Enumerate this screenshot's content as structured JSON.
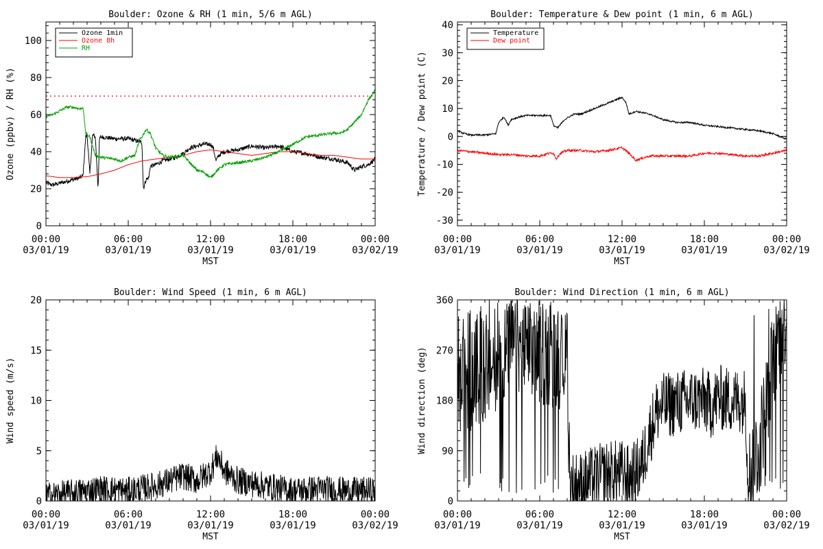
{
  "chart_data": [
    {
      "id": "ozone",
      "type": "line",
      "title": "Boulder: Ozone & RH (1 min, 5/6 m AGL)",
      "xlabel": "MST",
      "ylabel": "Ozone (ppbv) / RH (%)",
      "ylim": [
        0,
        110
      ],
      "yticks": [
        0,
        20,
        40,
        60,
        80,
        100
      ],
      "xticks": [
        {
          "line1": "00:00",
          "line2": "03/01/19"
        },
        {
          "line1": "06:00",
          "line2": "03/01/19"
        },
        {
          "line1": "12:00",
          "line2": "03/01/19"
        },
        {
          "line1": "18:00",
          "line2": "03/01/19"
        },
        {
          "line1": "00:00",
          "line2": "03/02/19"
        }
      ],
      "reference_line": {
        "y": 70,
        "color": "#ff0000",
        "style": "dotted"
      },
      "legend_position": "top-left",
      "series": [
        {
          "name": "Ozone 1min",
          "color": "#000000",
          "noise": 1.2,
          "points": [
            [
              0,
              23
            ],
            [
              0.5,
              22
            ],
            [
              1,
              23
            ],
            [
              1.5,
              24
            ],
            [
              2,
              25
            ],
            [
              2.5,
              26
            ],
            [
              2.7,
              27
            ],
            [
              2.9,
              48
            ],
            [
              3.0,
              49
            ],
            [
              3.2,
              28
            ],
            [
              3.4,
              49
            ],
            [
              3.6,
              48
            ],
            [
              3.8,
              20
            ],
            [
              3.9,
              47
            ],
            [
              4,
              48
            ],
            [
              5,
              47
            ],
            [
              6,
              47
            ],
            [
              6.5,
              46
            ],
            [
              7.0,
              45
            ],
            [
              7.1,
              20
            ],
            [
              7.3,
              25
            ],
            [
              7.5,
              26
            ],
            [
              7.6,
              32
            ],
            [
              8,
              33
            ],
            [
              8.5,
              35
            ],
            [
              9,
              36
            ],
            [
              9.5,
              37
            ],
            [
              10,
              39
            ],
            [
              10.5,
              42
            ],
            [
              11,
              43
            ],
            [
              11.5,
              44
            ],
            [
              12,
              44
            ],
            [
              12.2,
              42
            ],
            [
              12.4,
              35
            ],
            [
              12.6,
              38
            ],
            [
              13,
              40
            ],
            [
              14,
              41
            ],
            [
              15,
              43
            ],
            [
              16,
              42
            ],
            [
              17,
              43
            ],
            [
              18,
              40
            ],
            [
              19,
              39
            ],
            [
              20,
              37
            ],
            [
              21,
              36
            ],
            [
              22,
              34
            ],
            [
              22.5,
              30
            ],
            [
              23,
              32
            ],
            [
              23.5,
              33
            ],
            [
              24,
              36
            ]
          ]
        },
        {
          "name": "Ozone 8h",
          "color": "#ff0000",
          "noise": 0,
          "points": [
            [
              0,
              27
            ],
            [
              1,
              26
            ],
            [
              2,
              26
            ],
            [
              3,
              26.5
            ],
            [
              4,
              28
            ],
            [
              5,
              30
            ],
            [
              6,
              33
            ],
            [
              7,
              35
            ],
            [
              8,
              36
            ],
            [
              9,
              37
            ],
            [
              10,
              38
            ],
            [
              11,
              40
            ],
            [
              12,
              41
            ],
            [
              13,
              40
            ],
            [
              14,
              39
            ],
            [
              15,
              38
            ],
            [
              16,
              39
            ],
            [
              17,
              40
            ],
            [
              18,
              40
            ],
            [
              19,
              39
            ],
            [
              20,
              38
            ],
            [
              21,
              38
            ],
            [
              22,
              37
            ],
            [
              23,
              36
            ],
            [
              24,
              36
            ]
          ]
        },
        {
          "name": "RH",
          "color": "#00a000",
          "noise": 0.8,
          "points": [
            [
              0,
              59
            ],
            [
              0.5,
              60
            ],
            [
              1,
              62
            ],
            [
              1.5,
              64
            ],
            [
              2,
              64
            ],
            [
              2.5,
              63
            ],
            [
              2.7,
              64
            ],
            [
              2.9,
              50
            ],
            [
              3.2,
              48
            ],
            [
              3.4,
              43
            ],
            [
              3.6,
              38
            ],
            [
              4,
              37
            ],
            [
              5,
              36
            ],
            [
              5.5,
              35
            ],
            [
              6,
              37
            ],
            [
              6.5,
              38
            ],
            [
              6.8,
              46
            ],
            [
              7,
              48
            ],
            [
              7.3,
              52
            ],
            [
              7.6,
              50
            ],
            [
              8,
              42
            ],
            [
              8.5,
              38
            ],
            [
              9,
              37
            ],
            [
              10,
              38
            ],
            [
              10.5,
              34
            ],
            [
              11,
              30
            ],
            [
              11.5,
              29
            ],
            [
              12,
              26
            ],
            [
              12.5,
              30
            ],
            [
              13,
              33
            ],
            [
              14,
              34
            ],
            [
              15,
              35
            ],
            [
              16,
              37
            ],
            [
              17,
              40
            ],
            [
              18,
              44
            ],
            [
              19,
              48
            ],
            [
              20,
              49
            ],
            [
              21,
              50
            ],
            [
              21.5,
              50
            ],
            [
              22,
              52
            ],
            [
              22.5,
              56
            ],
            [
              23,
              60
            ],
            [
              23.5,
              68
            ],
            [
              24,
              73
            ]
          ]
        }
      ]
    },
    {
      "id": "temp",
      "type": "line",
      "title": "Boulder: Temperature & Dew point (1 min, 6 m AGL)",
      "xlabel": "MST",
      "ylabel": "Temperature / Dew point (C)",
      "ylim": [
        -32,
        41
      ],
      "yticks": [
        -30,
        -20,
        -10,
        0,
        10,
        20,
        30,
        40
      ],
      "xticks": [
        {
          "line1": "00:00",
          "line2": "03/01/19"
        },
        {
          "line1": "06:00",
          "line2": "03/01/19"
        },
        {
          "line1": "12:00",
          "line2": "03/01/19"
        },
        {
          "line1": "18:00",
          "line2": "03/01/19"
        },
        {
          "line1": "00:00",
          "line2": "03/02/19"
        }
      ],
      "legend_position": "top-left",
      "series": [
        {
          "name": "Temperature",
          "color": "#000000",
          "noise": 0.3,
          "points": [
            [
              0,
              2
            ],
            [
              0.5,
              1
            ],
            [
              1,
              0.5
            ],
            [
              2,
              0.5
            ],
            [
              2.8,
              1
            ],
            [
              3,
              5
            ],
            [
              3.4,
              7
            ],
            [
              3.7,
              4
            ],
            [
              3.9,
              6
            ],
            [
              4.5,
              7
            ],
            [
              5,
              7.5
            ],
            [
              6,
              7.5
            ],
            [
              6.8,
              7.5
            ],
            [
              7,
              4
            ],
            [
              7.3,
              3
            ],
            [
              7.8,
              6
            ],
            [
              8.5,
              8
            ],
            [
              9,
              8
            ],
            [
              10,
              10
            ],
            [
              11,
              12
            ],
            [
              12,
              14
            ],
            [
              12.3,
              12
            ],
            [
              12.5,
              8
            ],
            [
              13,
              9
            ],
            [
              14,
              8
            ],
            [
              15,
              6
            ],
            [
              16,
              5
            ],
            [
              17,
              5
            ],
            [
              18,
              4
            ],
            [
              19,
              3.5
            ],
            [
              20,
              3
            ],
            [
              21,
              2.5
            ],
            [
              22,
              2
            ],
            [
              23,
              1
            ],
            [
              24,
              -1
            ]
          ]
        },
        {
          "name": "Dew point",
          "color": "#ff0000",
          "noise": 0.4,
          "points": [
            [
              0,
              -5
            ],
            [
              1,
              -5.5
            ],
            [
              2,
              -6
            ],
            [
              3,
              -6.5
            ],
            [
              4,
              -6.5
            ],
            [
              5,
              -7
            ],
            [
              6,
              -7
            ],
            [
              6.7,
              -6
            ],
            [
              7,
              -6
            ],
            [
              7.2,
              -8
            ],
            [
              7.5,
              -6
            ],
            [
              8,
              -5
            ],
            [
              9,
              -5
            ],
            [
              10,
              -5.5
            ],
            [
              11,
              -5
            ],
            [
              12,
              -4
            ],
            [
              12.5,
              -6
            ],
            [
              13,
              -8.5
            ],
            [
              14,
              -7
            ],
            [
              15,
              -7
            ],
            [
              16,
              -7
            ],
            [
              17,
              -7
            ],
            [
              18,
              -6
            ],
            [
              19,
              -6
            ],
            [
              20,
              -6.5
            ],
            [
              21,
              -7
            ],
            [
              22,
              -7
            ],
            [
              23,
              -6
            ],
            [
              24,
              -5
            ]
          ]
        }
      ]
    },
    {
      "id": "wspd",
      "type": "line",
      "title": "Boulder: Wind Speed (1 min, 6 m AGL)",
      "xlabel": "MST",
      "ylabel": "Wind speed (m/s)",
      "ylim": [
        0,
        20
      ],
      "yticks": [
        0,
        5,
        10,
        15,
        20
      ],
      "xticks": [
        {
          "line1": "00:00",
          "line2": "03/01/19"
        },
        {
          "line1": "06:00",
          "line2": "03/01/19"
        },
        {
          "line1": "12:00",
          "line2": "03/01/19"
        },
        {
          "line1": "18:00",
          "line2": "03/01/19"
        },
        {
          "line1": "00:00",
          "line2": "03/02/19"
        }
      ],
      "series": [
        {
          "name": "",
          "color": "#000000",
          "noise": 1.4,
          "clipMin": 0,
          "points": [
            [
              0,
              0.5
            ],
            [
              2,
              0.8
            ],
            [
              4,
              1.2
            ],
            [
              6,
              1.0
            ],
            [
              8,
              1.5
            ],
            [
              10,
              2.5
            ],
            [
              11,
              2.0
            ],
            [
              12,
              3.0
            ],
            [
              12.5,
              4.5
            ],
            [
              13,
              3.0
            ],
            [
              14,
              2.0
            ],
            [
              16,
              1.5
            ],
            [
              18,
              1.0
            ],
            [
              20,
              1.2
            ],
            [
              22,
              1.0
            ],
            [
              24,
              1.0
            ]
          ]
        }
      ]
    },
    {
      "id": "wdir",
      "type": "line",
      "title": "Boulder: Wind Direction (1 min, 6 m AGL)",
      "xlabel": "MST",
      "ylabel": "Wind direction (deg)",
      "ylim": [
        0,
        360
      ],
      "yticks": [
        0,
        90,
        180,
        270,
        360
      ],
      "xticks": [
        {
          "line1": "00:00",
          "line2": "03/01/19"
        },
        {
          "line1": "06:00",
          "line2": "03/01/19"
        },
        {
          "line1": "12:00",
          "line2": "03/01/19"
        },
        {
          "line1": "18:00",
          "line2": "03/01/19"
        },
        {
          "line1": "00:00",
          "line2": "03/02/19"
        }
      ],
      "series": [
        {
          "name": "",
          "color": "#000000",
          "noise": 60,
          "clipMin": 0,
          "clipMax": 360,
          "chaotic": [
            [
              0,
              8.2
            ],
            [
              21.2,
              24
            ]
          ],
          "points": [
            [
              0,
              200
            ],
            [
              2,
              230
            ],
            [
              4,
              280
            ],
            [
              6,
              260
            ],
            [
              8,
              250
            ],
            [
              8.2,
              30
            ],
            [
              9,
              30
            ],
            [
              10,
              40
            ],
            [
              11,
              50
            ],
            [
              12,
              50
            ],
            [
              12.5,
              40
            ],
            [
              13,
              50
            ],
            [
              13.5,
              70
            ],
            [
              14,
              120
            ],
            [
              14.5,
              160
            ],
            [
              15,
              170
            ],
            [
              16,
              175
            ],
            [
              17,
              180
            ],
            [
              18,
              180
            ],
            [
              18.5,
              170
            ],
            [
              19,
              185
            ],
            [
              20,
              180
            ],
            [
              21,
              180
            ],
            [
              21.2,
              40
            ],
            [
              22,
              100
            ],
            [
              23,
              250
            ],
            [
              24,
              340
            ]
          ]
        }
      ]
    }
  ]
}
